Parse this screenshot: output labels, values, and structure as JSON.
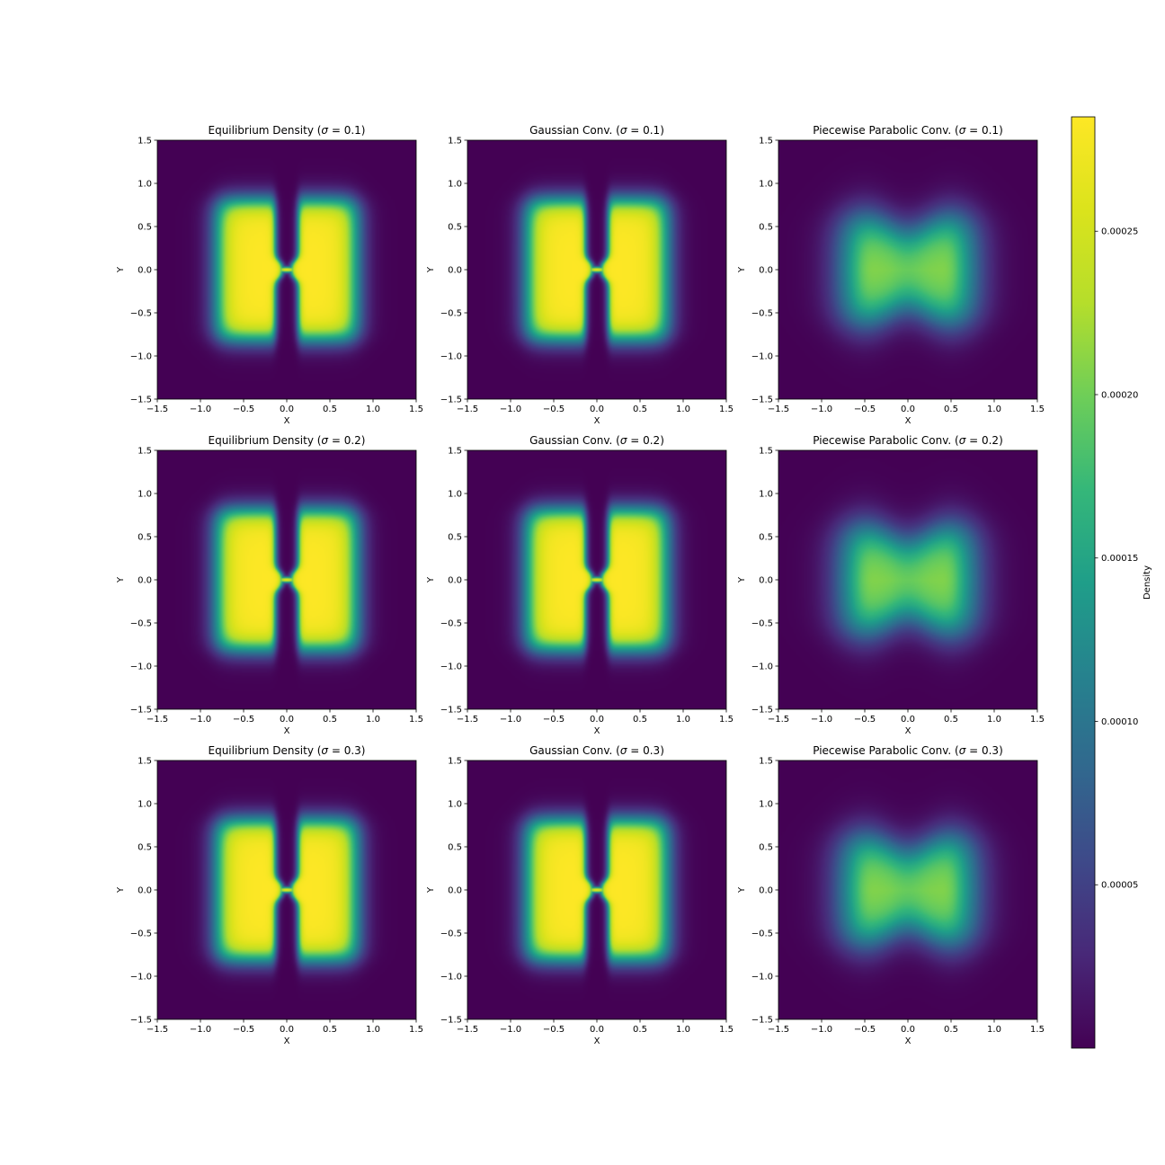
{
  "chart_data": {
    "type": "heatmap",
    "layout": "3x3 grid of heatmaps with shared colorbar",
    "colormap": "viridis",
    "xlim": [
      -1.5,
      1.5
    ],
    "ylim": [
      -1.5,
      1.5
    ],
    "ticks": [
      "−1.5",
      "−1.0",
      "−0.5",
      "0.0",
      "0.5",
      "1.0",
      "1.5"
    ],
    "tick_values": [
      -1.5,
      -1.0,
      -0.5,
      0.0,
      0.5,
      1.0,
      1.5
    ],
    "xlabel": "X",
    "ylabel": "Y",
    "panels": [
      {
        "title_main": "Equilibrium Density (",
        "title_sigma": "σ",
        "title_rest": " = 0.1)",
        "kind": "equilibrium",
        "sigma": 0.1
      },
      {
        "title_main": "Gaussian Conv. (",
        "title_sigma": "σ",
        "title_rest": " = 0.1)",
        "kind": "gaussian",
        "sigma": 0.1
      },
      {
        "title_main": "Piecewise Parabolic Conv. (",
        "title_sigma": "σ",
        "title_rest": " = 0.1)",
        "kind": "parabolic",
        "sigma": 0.1
      },
      {
        "title_main": "Equilibrium Density (",
        "title_sigma": "σ",
        "title_rest": " = 0.2)",
        "kind": "equilibrium",
        "sigma": 0.2
      },
      {
        "title_main": "Gaussian Conv. (",
        "title_sigma": "σ",
        "title_rest": " = 0.2)",
        "kind": "gaussian",
        "sigma": 0.2
      },
      {
        "title_main": "Piecewise Parabolic Conv. (",
        "title_sigma": "σ",
        "title_rest": " = 0.2)",
        "kind": "parabolic",
        "sigma": 0.2
      },
      {
        "title_main": "Equilibrium Density (",
        "title_sigma": "σ",
        "title_rest": " = 0.3)",
        "kind": "equilibrium",
        "sigma": 0.3
      },
      {
        "title_main": "Gaussian Conv. (",
        "title_sigma": "σ",
        "title_rest": " = 0.3)",
        "kind": "gaussian",
        "sigma": 0.3
      },
      {
        "title_main": "Piecewise Parabolic Conv. (",
        "title_sigma": "σ",
        "title_rest": " = 0.3)",
        "kind": "parabolic",
        "sigma": 0.3
      }
    ],
    "colorbar": {
      "label": "Density",
      "vmin": 0.0,
      "vmax": 0.000285,
      "ticks": [
        "0.00005",
        "0.00010",
        "0.00015",
        "0.00020",
        "0.00025"
      ],
      "tick_values": [
        5e-05,
        0.0001,
        0.00015,
        0.0002,
        0.00025
      ]
    },
    "peak_density": {
      "equilibrium": 0.000285,
      "gaussian": 0.000285,
      "parabolic": 0.000255
    }
  }
}
